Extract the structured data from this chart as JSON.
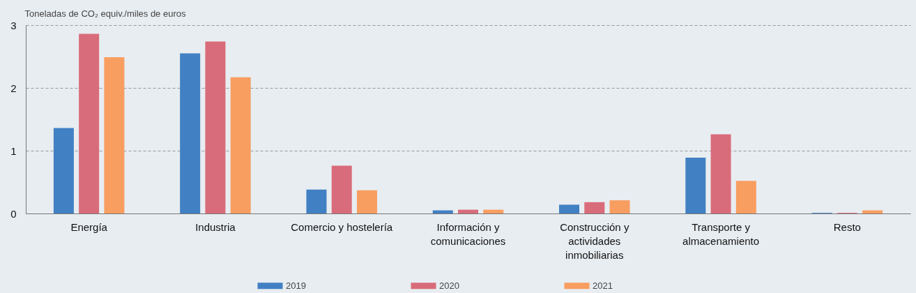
{
  "chart_data": {
    "type": "bar",
    "ylabel": "Toneladas de CO₂ equiv./miles de euros",
    "categories": [
      "Energía",
      "Industria",
      "Comercio y hostelería",
      "Información y comunicaciones",
      "Construcción y actividades inmobiliarias",
      "Transporte y almacenamiento",
      "Resto"
    ],
    "series": [
      {
        "name": "2019",
        "color": "#4180c3",
        "values": [
          1.36,
          2.55,
          0.38,
          0.05,
          0.14,
          0.89,
          0.01
        ]
      },
      {
        "name": "2020",
        "color": "#d96c7a",
        "values": [
          2.86,
          2.74,
          0.76,
          0.06,
          0.18,
          1.26,
          0.01
        ]
      },
      {
        "name": "2021",
        "color": "#f89e61",
        "values": [
          2.49,
          2.17,
          0.37,
          0.06,
          0.21,
          0.52,
          0.05
        ]
      }
    ],
    "ylim": [
      0,
      3
    ],
    "yticks": [
      0,
      1,
      2,
      3
    ],
    "grid": "y",
    "legend": "bottom"
  }
}
